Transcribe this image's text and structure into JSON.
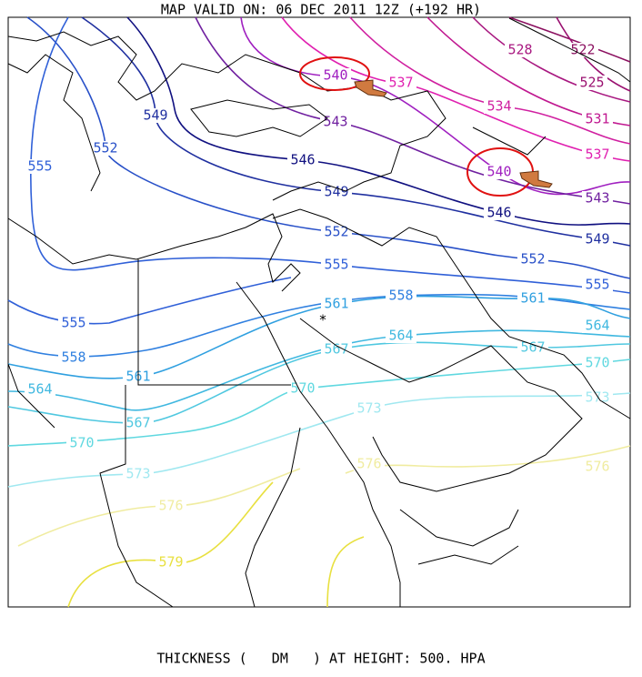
{
  "header": {
    "title": "MAP VALID ON: 06 DEC 2011 12Z (+192 HR)"
  },
  "contours": [
    {
      "label": "522",
      "color": "#8b1060"
    },
    {
      "label": "525",
      "color": "#9a1070"
    },
    {
      "label": "528",
      "color": "#a81880"
    },
    {
      "label": "531",
      "color": "#c01890"
    },
    {
      "label": "534",
      "color": "#d020a0"
    },
    {
      "label": "537",
      "color": "#e020b0"
    },
    {
      "label": "537",
      "color": "#e020b0"
    },
    {
      "label": "540",
      "color": "#a020c0"
    },
    {
      "label": "540",
      "color": "#a020c0"
    },
    {
      "label": "543",
      "color": "#7020a0"
    },
    {
      "label": "543",
      "color": "#7020a0"
    },
    {
      "label": "546",
      "color": "#101080"
    },
    {
      "label": "546",
      "color": "#101080"
    },
    {
      "label": "549",
      "color": "#2030a0"
    },
    {
      "label": "549",
      "color": "#2030a0"
    },
    {
      "label": "549",
      "color": "#2030a0"
    },
    {
      "label": "552",
      "color": "#2850c8"
    },
    {
      "label": "552",
      "color": "#2850c8"
    },
    {
      "label": "552",
      "color": "#2850c8"
    },
    {
      "label": "555",
      "color": "#3060d8"
    },
    {
      "label": "555",
      "color": "#3060d8"
    },
    {
      "label": "555",
      "color": "#3060d8"
    },
    {
      "label": "555",
      "color": "#3060d8"
    },
    {
      "label": "558",
      "color": "#3080e0"
    },
    {
      "label": "558",
      "color": "#3080e0"
    },
    {
      "label": "561",
      "color": "#30a0e0"
    },
    {
      "label": "561",
      "color": "#30a0e0"
    },
    {
      "label": "561",
      "color": "#30a0e0"
    },
    {
      "label": "564",
      "color": "#40b8e0"
    },
    {
      "label": "564",
      "color": "#40b8e0"
    },
    {
      "label": "564",
      "color": "#40b8e0"
    },
    {
      "label": "567",
      "color": "#50c8e0"
    },
    {
      "label": "567",
      "color": "#50c8e0"
    },
    {
      "label": "567",
      "color": "#50c8e0"
    },
    {
      "label": "570",
      "color": "#60d8e0"
    },
    {
      "label": "570",
      "color": "#60d8e0"
    },
    {
      "label": "570",
      "color": "#60d8e0"
    },
    {
      "label": "573",
      "color": "#a0e8f0"
    },
    {
      "label": "573",
      "color": "#a0e8f0"
    },
    {
      "label": "573",
      "color": "#a0e8f0"
    },
    {
      "label": "576",
      "color": "#f0eca0"
    },
    {
      "label": "576",
      "color": "#f0eca0"
    },
    {
      "label": "576",
      "color": "#f0eca0"
    },
    {
      "label": "579",
      "color": "#e8e040"
    }
  ],
  "footer": {
    "caption": "THICKNESS (   DM   ) AT HEIGHT: 500. HPA"
  }
}
